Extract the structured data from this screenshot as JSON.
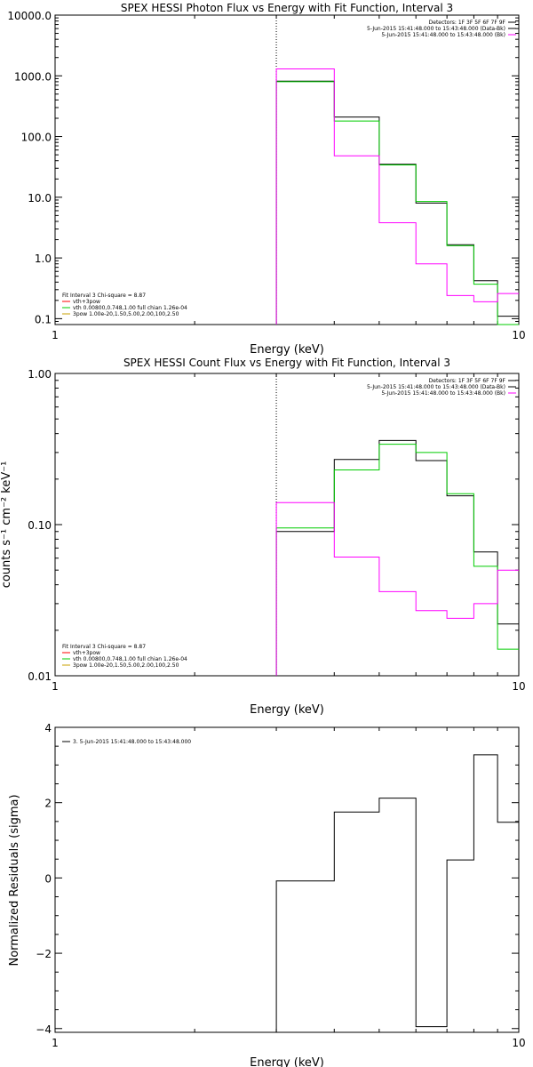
{
  "chart_data": [
    {
      "type": "line",
      "title": "SPEX HESSI Photon Flux vs Energy with Fit Function, Interval 3",
      "xlabel": "Energy (keV)",
      "ylabel": "",
      "xscale": "log",
      "yscale": "log",
      "xlim": [
        1,
        10
      ],
      "ylim": [
        0.08,
        10000
      ],
      "x_ticks": [
        "1",
        "10"
      ],
      "y_ticks": [
        "10000.0",
        "1000.0",
        "100.0",
        "10.0",
        "1.0",
        "0.1"
      ],
      "y_tick_values": [
        10000,
        1000,
        100,
        10,
        1,
        0.1
      ],
      "dotted_vline_x": 3.0,
      "info_lines": [
        "Detectors: 1F 3F 5F 6F 7F 9F",
        "5-Jun-2015 15:41:48.000 to 15:43:48.000 (Data-Bk)",
        "5-Jun-2015 15:41:48.000 to 15:43:48.000 (Bk)"
      ],
      "info_colors": [
        "#000000",
        "#000000",
        "#ff00ff"
      ],
      "legend_lines": [
        "Fit Interval 3   Chi-square = 8.87",
        "vth+3pow",
        "vth 0.00800,0.748,1.00  full chian 1.26e-04",
        "3pow 1.00e-20,1.50,5.00,2.00,100,2.50"
      ],
      "legend_colors": [
        "#000000",
        "#ff0000",
        "#00cc00",
        "#c8a000"
      ],
      "edges": [
        3.0,
        4.0,
        5.0,
        6.0,
        7.0,
        8.0,
        9.0,
        10.0
      ],
      "series": [
        {
          "color": "#000000",
          "values": [
            820,
            210,
            35,
            8,
            1.65,
            0.42,
            0.11
          ]
        },
        {
          "color": "#00cc00",
          "values": [
            800,
            180,
            34,
            8.5,
            1.6,
            0.37,
            0.08
          ]
        },
        {
          "color": "#ff00ff",
          "values": [
            1300,
            48,
            3.8,
            0.8,
            0.24,
            0.19,
            0.26
          ]
        }
      ]
    },
    {
      "type": "line",
      "title": "SPEX HESSI Count Flux vs Energy with Fit Function, Interval 3",
      "xlabel": "Energy (keV)",
      "ylabel": "counts s⁻¹ cm⁻² keV⁻¹",
      "xscale": "log",
      "yscale": "log",
      "xlim": [
        1,
        10
      ],
      "ylim": [
        0.01,
        1.0
      ],
      "x_ticks": [
        "1",
        "10"
      ],
      "y_ticks": [
        "1.00",
        "0.10",
        "0.01"
      ],
      "y_tick_values": [
        1.0,
        0.1,
        0.01
      ],
      "dotted_vline_x": 3.0,
      "info_lines": [
        "Detectors: 1F 3F 5F 6F 7F 9F",
        "5-Jun-2015 15:41:48.000 to 15:43:48.000 (Data-Bk)",
        "5-Jun-2015 15:41:48.000 to 15:43:48.000 (Bk)"
      ],
      "info_colors": [
        "#000000",
        "#000000",
        "#ff00ff"
      ],
      "legend_lines": [
        "Fit Interval 3   Chi-square = 8.87",
        "vth+3pow",
        "vth 0.00800,0.748,1.00  full chian 1.26e-04",
        "3pow 1.00e-20,1.50,5.00,2.00,100,2.50"
      ],
      "legend_colors": [
        "#000000",
        "#ff0000",
        "#00cc00",
        "#c8a000"
      ],
      "edges": [
        3.0,
        4.0,
        5.0,
        6.0,
        7.0,
        8.0,
        9.0,
        10.0
      ],
      "series": [
        {
          "color": "#000000",
          "values": [
            0.09,
            0.27,
            0.36,
            0.265,
            0.155,
            0.066,
            0.022
          ]
        },
        {
          "color": "#00cc00",
          "values": [
            0.095,
            0.23,
            0.34,
            0.3,
            0.16,
            0.053,
            0.015
          ]
        },
        {
          "color": "#ff00ff",
          "values": [
            0.14,
            0.061,
            0.036,
            0.027,
            0.024,
            0.03,
            0.05
          ]
        }
      ]
    },
    {
      "type": "line",
      "title": "",
      "xlabel": "Energy (keV)",
      "ylabel": "Normalized Residuals (sigma)",
      "xscale": "log",
      "yscale": "linear",
      "xlim": [
        1,
        10
      ],
      "ylim": [
        -4.1,
        4.0
      ],
      "x_ticks": [
        "1",
        "10"
      ],
      "y_ticks": [
        "4",
        "2",
        "0",
        "−2",
        "−4"
      ],
      "y_tick_values": [
        4,
        2,
        0,
        -2,
        -4
      ],
      "legend_lines": [
        "3.  5-Jun-2015 15:41:48.000 to 15:43:48.000"
      ],
      "legend_colors": [
        "#000000"
      ],
      "edges": [
        3.0,
        4.0,
        5.0,
        6.0,
        7.0,
        8.0,
        9.0,
        10.0
      ],
      "series": [
        {
          "color": "#000000",
          "values": [
            -0.08,
            1.75,
            2.12,
            -3.95,
            0.48,
            3.27,
            1.48
          ]
        }
      ]
    }
  ]
}
